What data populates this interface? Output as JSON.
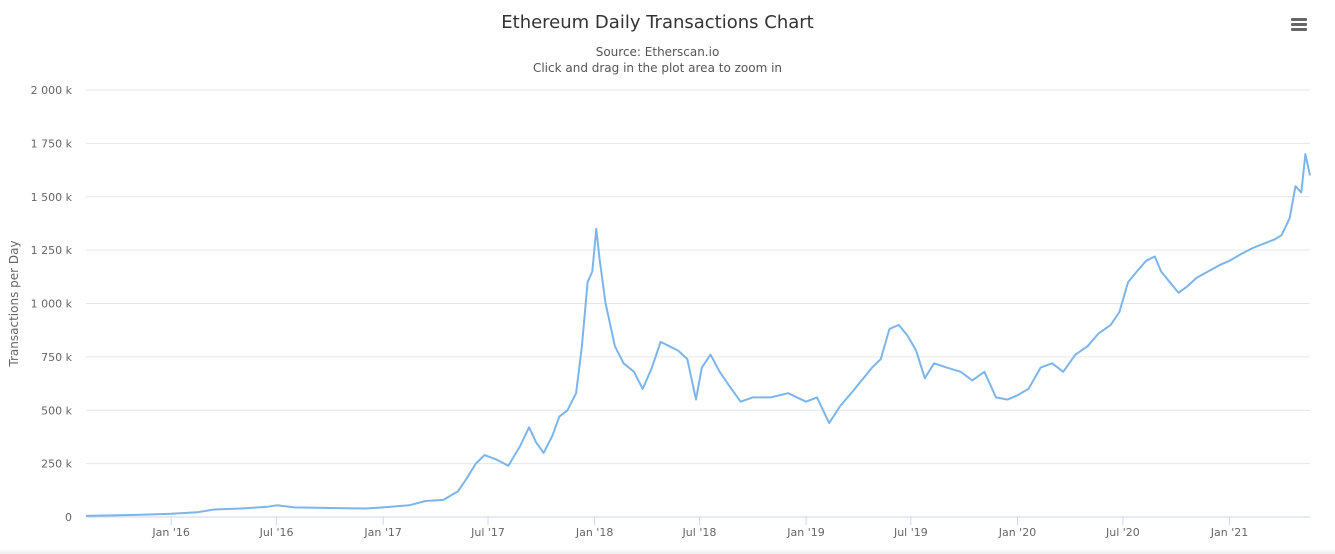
{
  "chart_data": {
    "type": "line",
    "title": "Ethereum Daily Transactions Chart",
    "subtitle": "Source: Etherscan.io",
    "zoom_hint": "Click and drag in the plot area to zoom in",
    "xlabel": "",
    "ylabel": "Transactions per Day",
    "ylim": [
      0,
      2000000
    ],
    "xlim": [
      "2015-08-07",
      "2021-05-20"
    ],
    "y_ticks": [
      {
        "value": 0,
        "label": "0"
      },
      {
        "value": 250000,
        "label": "250 k"
      },
      {
        "value": 500000,
        "label": "500 k"
      },
      {
        "value": 750000,
        "label": "750 k"
      },
      {
        "value": 1000000,
        "label": "1 000 k"
      },
      {
        "value": 1250000,
        "label": "1 250 k"
      },
      {
        "value": 1500000,
        "label": "1 500 k"
      },
      {
        "value": 1750000,
        "label": "1 750 k"
      },
      {
        "value": 2000000,
        "label": "2 000 k"
      }
    ],
    "x_ticks": [
      {
        "value": "2016-01-01",
        "label": "Jan '16"
      },
      {
        "value": "2016-07-01",
        "label": "Jul '16"
      },
      {
        "value": "2017-01-01",
        "label": "Jan '17"
      },
      {
        "value": "2017-07-01",
        "label": "Jul '17"
      },
      {
        "value": "2018-01-01",
        "label": "Jan '18"
      },
      {
        "value": "2018-07-01",
        "label": "Jul '18"
      },
      {
        "value": "2019-01-01",
        "label": "Jan '19"
      },
      {
        "value": "2019-07-01",
        "label": "Jul '19"
      },
      {
        "value": "2020-01-01",
        "label": "Jan '20"
      },
      {
        "value": "2020-07-01",
        "label": "Jul '20"
      },
      {
        "value": "2021-01-01",
        "label": "Jan '21"
      }
    ],
    "grid": true,
    "legend": "none",
    "series": [
      {
        "color": "#7cb5ec",
        "points": [
          [
            "2015-08-07",
            5000
          ],
          [
            "2015-10-01",
            8000
          ],
          [
            "2015-12-01",
            12000
          ],
          [
            "2016-01-01",
            15000
          ],
          [
            "2016-02-15",
            22000
          ],
          [
            "2016-03-15",
            35000
          ],
          [
            "2016-05-01",
            40000
          ],
          [
            "2016-06-15",
            48000
          ],
          [
            "2016-07-01",
            55000
          ],
          [
            "2016-08-01",
            45000
          ],
          [
            "2016-10-01",
            42000
          ],
          [
            "2016-12-01",
            40000
          ],
          [
            "2017-01-01",
            45000
          ],
          [
            "2017-02-15",
            55000
          ],
          [
            "2017-03-15",
            75000
          ],
          [
            "2017-04-15",
            80000
          ],
          [
            "2017-05-10",
            120000
          ],
          [
            "2017-05-25",
            180000
          ],
          [
            "2017-06-10",
            250000
          ],
          [
            "2017-06-25",
            290000
          ],
          [
            "2017-07-15",
            270000
          ],
          [
            "2017-08-05",
            240000
          ],
          [
            "2017-08-25",
            330000
          ],
          [
            "2017-09-10",
            420000
          ],
          [
            "2017-09-22",
            350000
          ],
          [
            "2017-10-05",
            300000
          ],
          [
            "2017-10-20",
            380000
          ],
          [
            "2017-11-01",
            470000
          ],
          [
            "2017-11-15",
            500000
          ],
          [
            "2017-11-30",
            580000
          ],
          [
            "2017-12-10",
            800000
          ],
          [
            "2017-12-20",
            1100000
          ],
          [
            "2017-12-28",
            1150000
          ],
          [
            "2018-01-04",
            1350000
          ],
          [
            "2018-01-10",
            1200000
          ],
          [
            "2018-01-20",
            1000000
          ],
          [
            "2018-02-05",
            800000
          ],
          [
            "2018-02-20",
            720000
          ],
          [
            "2018-03-10",
            680000
          ],
          [
            "2018-03-25",
            600000
          ],
          [
            "2018-04-10",
            700000
          ],
          [
            "2018-04-25",
            820000
          ],
          [
            "2018-05-10",
            800000
          ],
          [
            "2018-05-25",
            780000
          ],
          [
            "2018-06-10",
            740000
          ],
          [
            "2018-06-25",
            550000
          ],
          [
            "2018-07-05",
            700000
          ],
          [
            "2018-07-20",
            760000
          ],
          [
            "2018-08-05",
            680000
          ],
          [
            "2018-08-20",
            620000
          ],
          [
            "2018-09-10",
            540000
          ],
          [
            "2018-10-01",
            560000
          ],
          [
            "2018-11-01",
            560000
          ],
          [
            "2018-12-01",
            580000
          ],
          [
            "2019-01-01",
            540000
          ],
          [
            "2019-01-20",
            560000
          ],
          [
            "2019-02-10",
            440000
          ],
          [
            "2019-03-01",
            520000
          ],
          [
            "2019-03-20",
            580000
          ],
          [
            "2019-04-10",
            650000
          ],
          [
            "2019-04-25",
            700000
          ],
          [
            "2019-05-10",
            740000
          ],
          [
            "2019-05-25",
            880000
          ],
          [
            "2019-06-10",
            900000
          ],
          [
            "2019-06-25",
            850000
          ],
          [
            "2019-07-10",
            780000
          ],
          [
            "2019-07-25",
            650000
          ],
          [
            "2019-08-10",
            720000
          ],
          [
            "2019-09-01",
            700000
          ],
          [
            "2019-09-25",
            680000
          ],
          [
            "2019-10-15",
            640000
          ],
          [
            "2019-11-05",
            680000
          ],
          [
            "2019-11-25",
            560000
          ],
          [
            "2019-12-15",
            550000
          ],
          [
            "2020-01-01",
            570000
          ],
          [
            "2020-01-20",
            600000
          ],
          [
            "2020-02-10",
            700000
          ],
          [
            "2020-03-01",
            720000
          ],
          [
            "2020-03-20",
            680000
          ],
          [
            "2020-04-10",
            760000
          ],
          [
            "2020-05-01",
            800000
          ],
          [
            "2020-05-20",
            860000
          ],
          [
            "2020-06-10",
            900000
          ],
          [
            "2020-06-25",
            960000
          ],
          [
            "2020-07-10",
            1100000
          ],
          [
            "2020-07-25",
            1150000
          ],
          [
            "2020-08-10",
            1200000
          ],
          [
            "2020-08-25",
            1220000
          ],
          [
            "2020-09-05",
            1150000
          ],
          [
            "2020-09-20",
            1100000
          ],
          [
            "2020-10-05",
            1050000
          ],
          [
            "2020-10-20",
            1080000
          ],
          [
            "2020-11-05",
            1120000
          ],
          [
            "2020-11-25",
            1150000
          ],
          [
            "2020-12-15",
            1180000
          ],
          [
            "2021-01-01",
            1200000
          ],
          [
            "2021-01-20",
            1230000
          ],
          [
            "2021-02-10",
            1260000
          ],
          [
            "2021-03-01",
            1280000
          ],
          [
            "2021-03-20",
            1300000
          ],
          [
            "2021-04-01",
            1320000
          ],
          [
            "2021-04-15",
            1400000
          ],
          [
            "2021-04-25",
            1550000
          ],
          [
            "2021-05-05",
            1520000
          ],
          [
            "2021-05-12",
            1700000
          ],
          [
            "2021-05-20",
            1600000
          ]
        ]
      }
    ]
  }
}
